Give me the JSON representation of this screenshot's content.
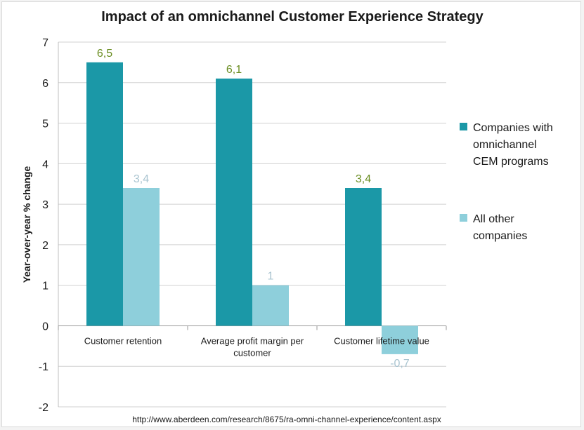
{
  "chart_data": {
    "type": "bar",
    "title": "Impact of an omnichannel Customer Experience Strategy",
    "ylabel": "Year-over-year % change",
    "xlabel": "",
    "categories": [
      [
        "Customer retention"
      ],
      [
        "Average profit margin per",
        "customer"
      ],
      [
        "Customer lifetime value"
      ]
    ],
    "series": [
      {
        "name": [
          "Companies with",
          "omnichannel",
          "CEM programs"
        ],
        "values": [
          6.5,
          6.1,
          3.4
        ],
        "labels": [
          "6,5",
          "6,1",
          "3,4"
        ],
        "color": "#1b98a7",
        "label_color": "#6b8e23"
      },
      {
        "name": [
          "All other",
          "companies"
        ],
        "values": [
          3.4,
          1,
          -0.7
        ],
        "labels": [
          "3,4",
          "1",
          "-0,7"
        ],
        "color": "#8ecfdb",
        "label_color": "#a9c4d0"
      }
    ],
    "ylim": [
      -2,
      7
    ],
    "yticks": [
      7,
      6,
      5,
      4,
      3,
      2,
      1,
      0,
      -1,
      -2
    ],
    "grid": true,
    "legend": "right"
  },
  "source": "http://www.aberdeen.com/research/8675/ra-omni-channel-experience/content.aspx"
}
